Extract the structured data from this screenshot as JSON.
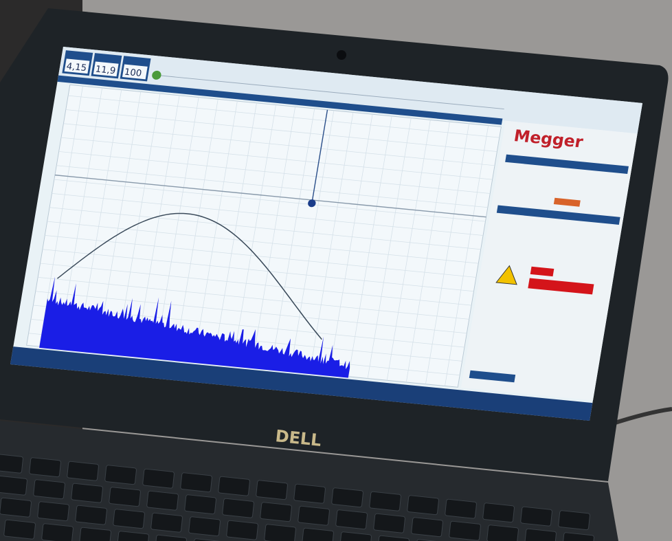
{
  "readouts": [
    "4,15",
    "11,9",
    "100"
  ],
  "brand": "Megger",
  "laptop_logo": "DELL"
}
